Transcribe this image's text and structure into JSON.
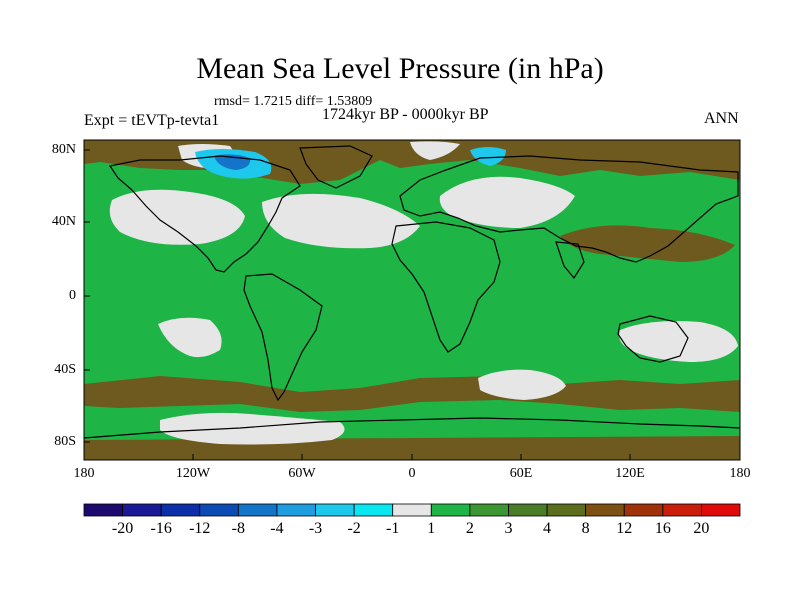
{
  "title": "Mean Sea Level Pressure (in hPa)",
  "stats": "rmsd= 1.7215 diff= 1.53809",
  "experiment": "Expt = tEVTp-tevta1",
  "period": "1724kyr BP - 0000kyr BP",
  "season": "ANN",
  "lat_labels": [
    "80N",
    "40N",
    "0",
    "40S",
    "80S"
  ],
  "lon_labels": [
    "180",
    "120W",
    "60W",
    "0",
    "60E",
    "120E",
    "180"
  ],
  "colorbar": {
    "labels": [
      "-20",
      "-16",
      "-12",
      "-8",
      "-4",
      "-3",
      "-2",
      "-1",
      "1",
      "2",
      "3",
      "4",
      "8",
      "12",
      "16",
      "20"
    ],
    "colors": [
      "#1e0a6e",
      "#1a1a96",
      "#0a2fa8",
      "#0a4cb4",
      "#1474c8",
      "#1e9ee0",
      "#1ec8ec",
      "#0ae6f0",
      "#e6e6e6",
      "#1eb446",
      "#3c9632",
      "#4b7d28",
      "#5a6e1e",
      "#7d5014",
      "#a0320a",
      "#c81e0a",
      "#e10a0a"
    ]
  },
  "colors": {
    "ocean_fill": "#1eb446",
    "positive_brown": "#6e5a1e",
    "near_zero": "#e6e6e6",
    "negative_cyan": "#1ec8ec",
    "negative_blue": "#1474c8"
  }
}
